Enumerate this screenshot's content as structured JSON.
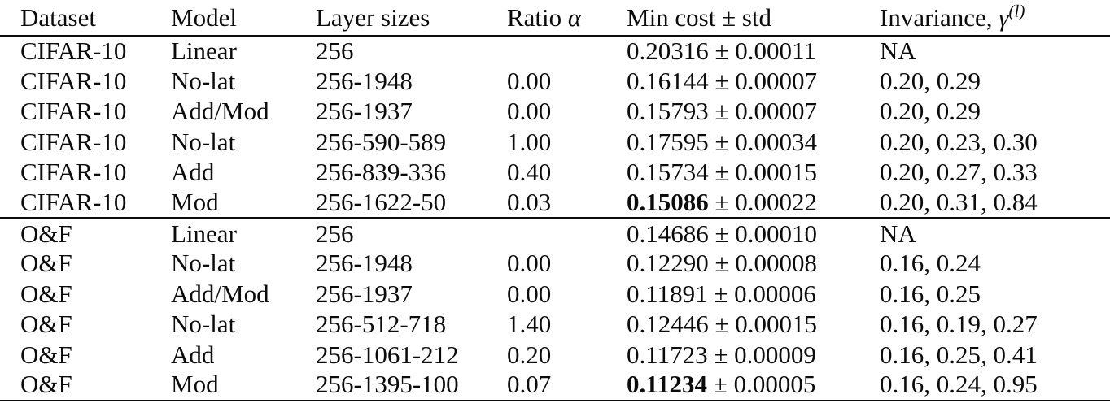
{
  "table": {
    "headers": {
      "dataset": "Dataset",
      "model": "Model",
      "layer_sizes": "Layer sizes",
      "ratio_prefix": "Ratio ",
      "ratio_symbol": "α",
      "min_cost": "Min cost ± std",
      "invariance_prefix": "Invariance, ",
      "invariance_symbol": "γ",
      "invariance_sup": "(l)"
    },
    "plus_minus": "±",
    "rows": [
      {
        "dataset": "CIFAR-10",
        "model": "Linear",
        "layers": "256",
        "ratio": "",
        "min_cost": "0.20316",
        "std": "0.00011",
        "bold": false,
        "invariance": "NA",
        "section_start": false
      },
      {
        "dataset": "CIFAR-10",
        "model": "No-lat",
        "layers": "256-1948",
        "ratio": "0.00",
        "min_cost": "0.16144",
        "std": "0.00007",
        "bold": false,
        "invariance": "0.20, 0.29",
        "section_start": false
      },
      {
        "dataset": "CIFAR-10",
        "model": "Add/Mod",
        "layers": "256-1937",
        "ratio": "0.00",
        "min_cost": "0.15793",
        "std": "0.00007",
        "bold": false,
        "invariance": "0.20, 0.29",
        "section_start": false
      },
      {
        "dataset": "CIFAR-10",
        "model": "No-lat",
        "layers": "256-590-589",
        "ratio": "1.00",
        "min_cost": "0.17595",
        "std": "0.00034",
        "bold": false,
        "invariance": "0.20, 0.23, 0.30",
        "section_start": false
      },
      {
        "dataset": "CIFAR-10",
        "model": "Add",
        "layers": "256-839-336",
        "ratio": "0.40",
        "min_cost": "0.15734",
        "std": "0.00015",
        "bold": false,
        "invariance": "0.20, 0.27, 0.33",
        "section_start": false
      },
      {
        "dataset": "CIFAR-10",
        "model": "Mod",
        "layers": "256-1622-50",
        "ratio": "0.03",
        "min_cost": "0.15086",
        "std": "0.00022",
        "bold": true,
        "invariance": "0.20, 0.31, 0.84",
        "section_start": false
      },
      {
        "dataset": "O&F",
        "model": "Linear",
        "layers": "256",
        "ratio": "",
        "min_cost": "0.14686",
        "std": "0.00010",
        "bold": false,
        "invariance": "NA",
        "section_start": true
      },
      {
        "dataset": "O&F",
        "model": "No-lat",
        "layers": "256-1948",
        "ratio": "0.00",
        "min_cost": "0.12290",
        "std": "0.00008",
        "bold": false,
        "invariance": "0.16, 0.24",
        "section_start": false
      },
      {
        "dataset": "O&F",
        "model": "Add/Mod",
        "layers": "256-1937",
        "ratio": "0.00",
        "min_cost": "0.11891",
        "std": "0.00006",
        "bold": false,
        "invariance": "0.16, 0.25",
        "section_start": false
      },
      {
        "dataset": "O&F",
        "model": "No-lat",
        "layers": "256-512-718",
        "ratio": "1.40",
        "min_cost": "0.12446",
        "std": "0.00015",
        "bold": false,
        "invariance": "0.16, 0.19, 0.27",
        "section_start": false
      },
      {
        "dataset": "O&F",
        "model": "Add",
        "layers": "256-1061-212",
        "ratio": "0.20",
        "min_cost": "0.11723",
        "std": "0.00009",
        "bold": false,
        "invariance": "0.16, 0.25, 0.41",
        "section_start": false
      },
      {
        "dataset": "O&F",
        "model": "Mod",
        "layers": "256-1395-100",
        "ratio": "0.07",
        "min_cost": "0.11234",
        "std": "0.00005",
        "bold": true,
        "invariance": "0.16, 0.24, 0.95",
        "section_start": false
      }
    ]
  }
}
